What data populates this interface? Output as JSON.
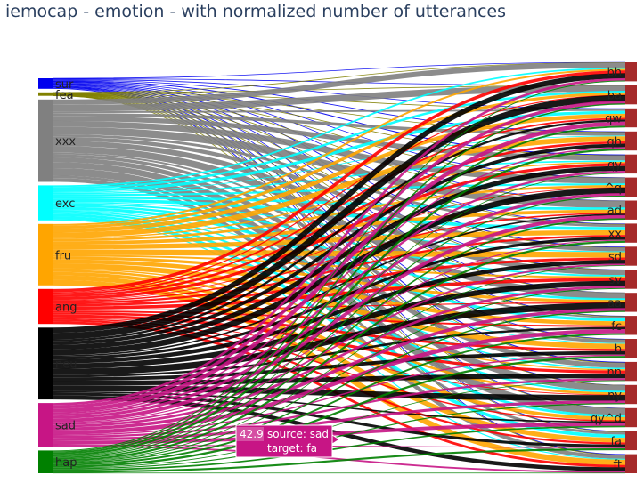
{
  "chart_data": {
    "type": "sankey",
    "title": "iemocap - emotion - with normalized number of utterances",
    "source_nodes": [
      {
        "label": "sur",
        "color": "#0000ee",
        "value": 1.2
      },
      {
        "label": "fea",
        "color": "#808000",
        "value": 0.4
      },
      {
        "label": "xxx",
        "color": "#808080",
        "value": 9.4
      },
      {
        "label": "exc",
        "color": "#00ffff",
        "value": 4.0
      },
      {
        "label": "fru",
        "color": "#ffa500",
        "value": 7.0
      },
      {
        "label": "ang",
        "color": "#ff0000",
        "value": 4.0
      },
      {
        "label": "neu",
        "color": "#000000",
        "value": 8.2
      },
      {
        "label": "sad",
        "color": "#c71585",
        "value": 5.0
      },
      {
        "label": "hap",
        "color": "#008000",
        "value": 2.6
      }
    ],
    "target_nodes": [
      {
        "label": "bh"
      },
      {
        "label": "ba"
      },
      {
        "label": "qw"
      },
      {
        "label": "qh"
      },
      {
        "label": "qy"
      },
      {
        "label": "^q"
      },
      {
        "label": "ad"
      },
      {
        "label": "xx"
      },
      {
        "label": "sd"
      },
      {
        "label": "sv"
      },
      {
        "label": "aa"
      },
      {
        "label": "fc"
      },
      {
        "label": "b"
      },
      {
        "label": "nn"
      },
      {
        "label": "ny"
      },
      {
        "label": "qy^d"
      },
      {
        "label": "fa"
      },
      {
        "label": "ft"
      }
    ],
    "target_color": "#a52a2a",
    "hover": {
      "value": "42.9",
      "source_line": "source: sad",
      "target_line": "target: fa",
      "source": "sad",
      "target": "fa",
      "color": "#c71585"
    }
  }
}
